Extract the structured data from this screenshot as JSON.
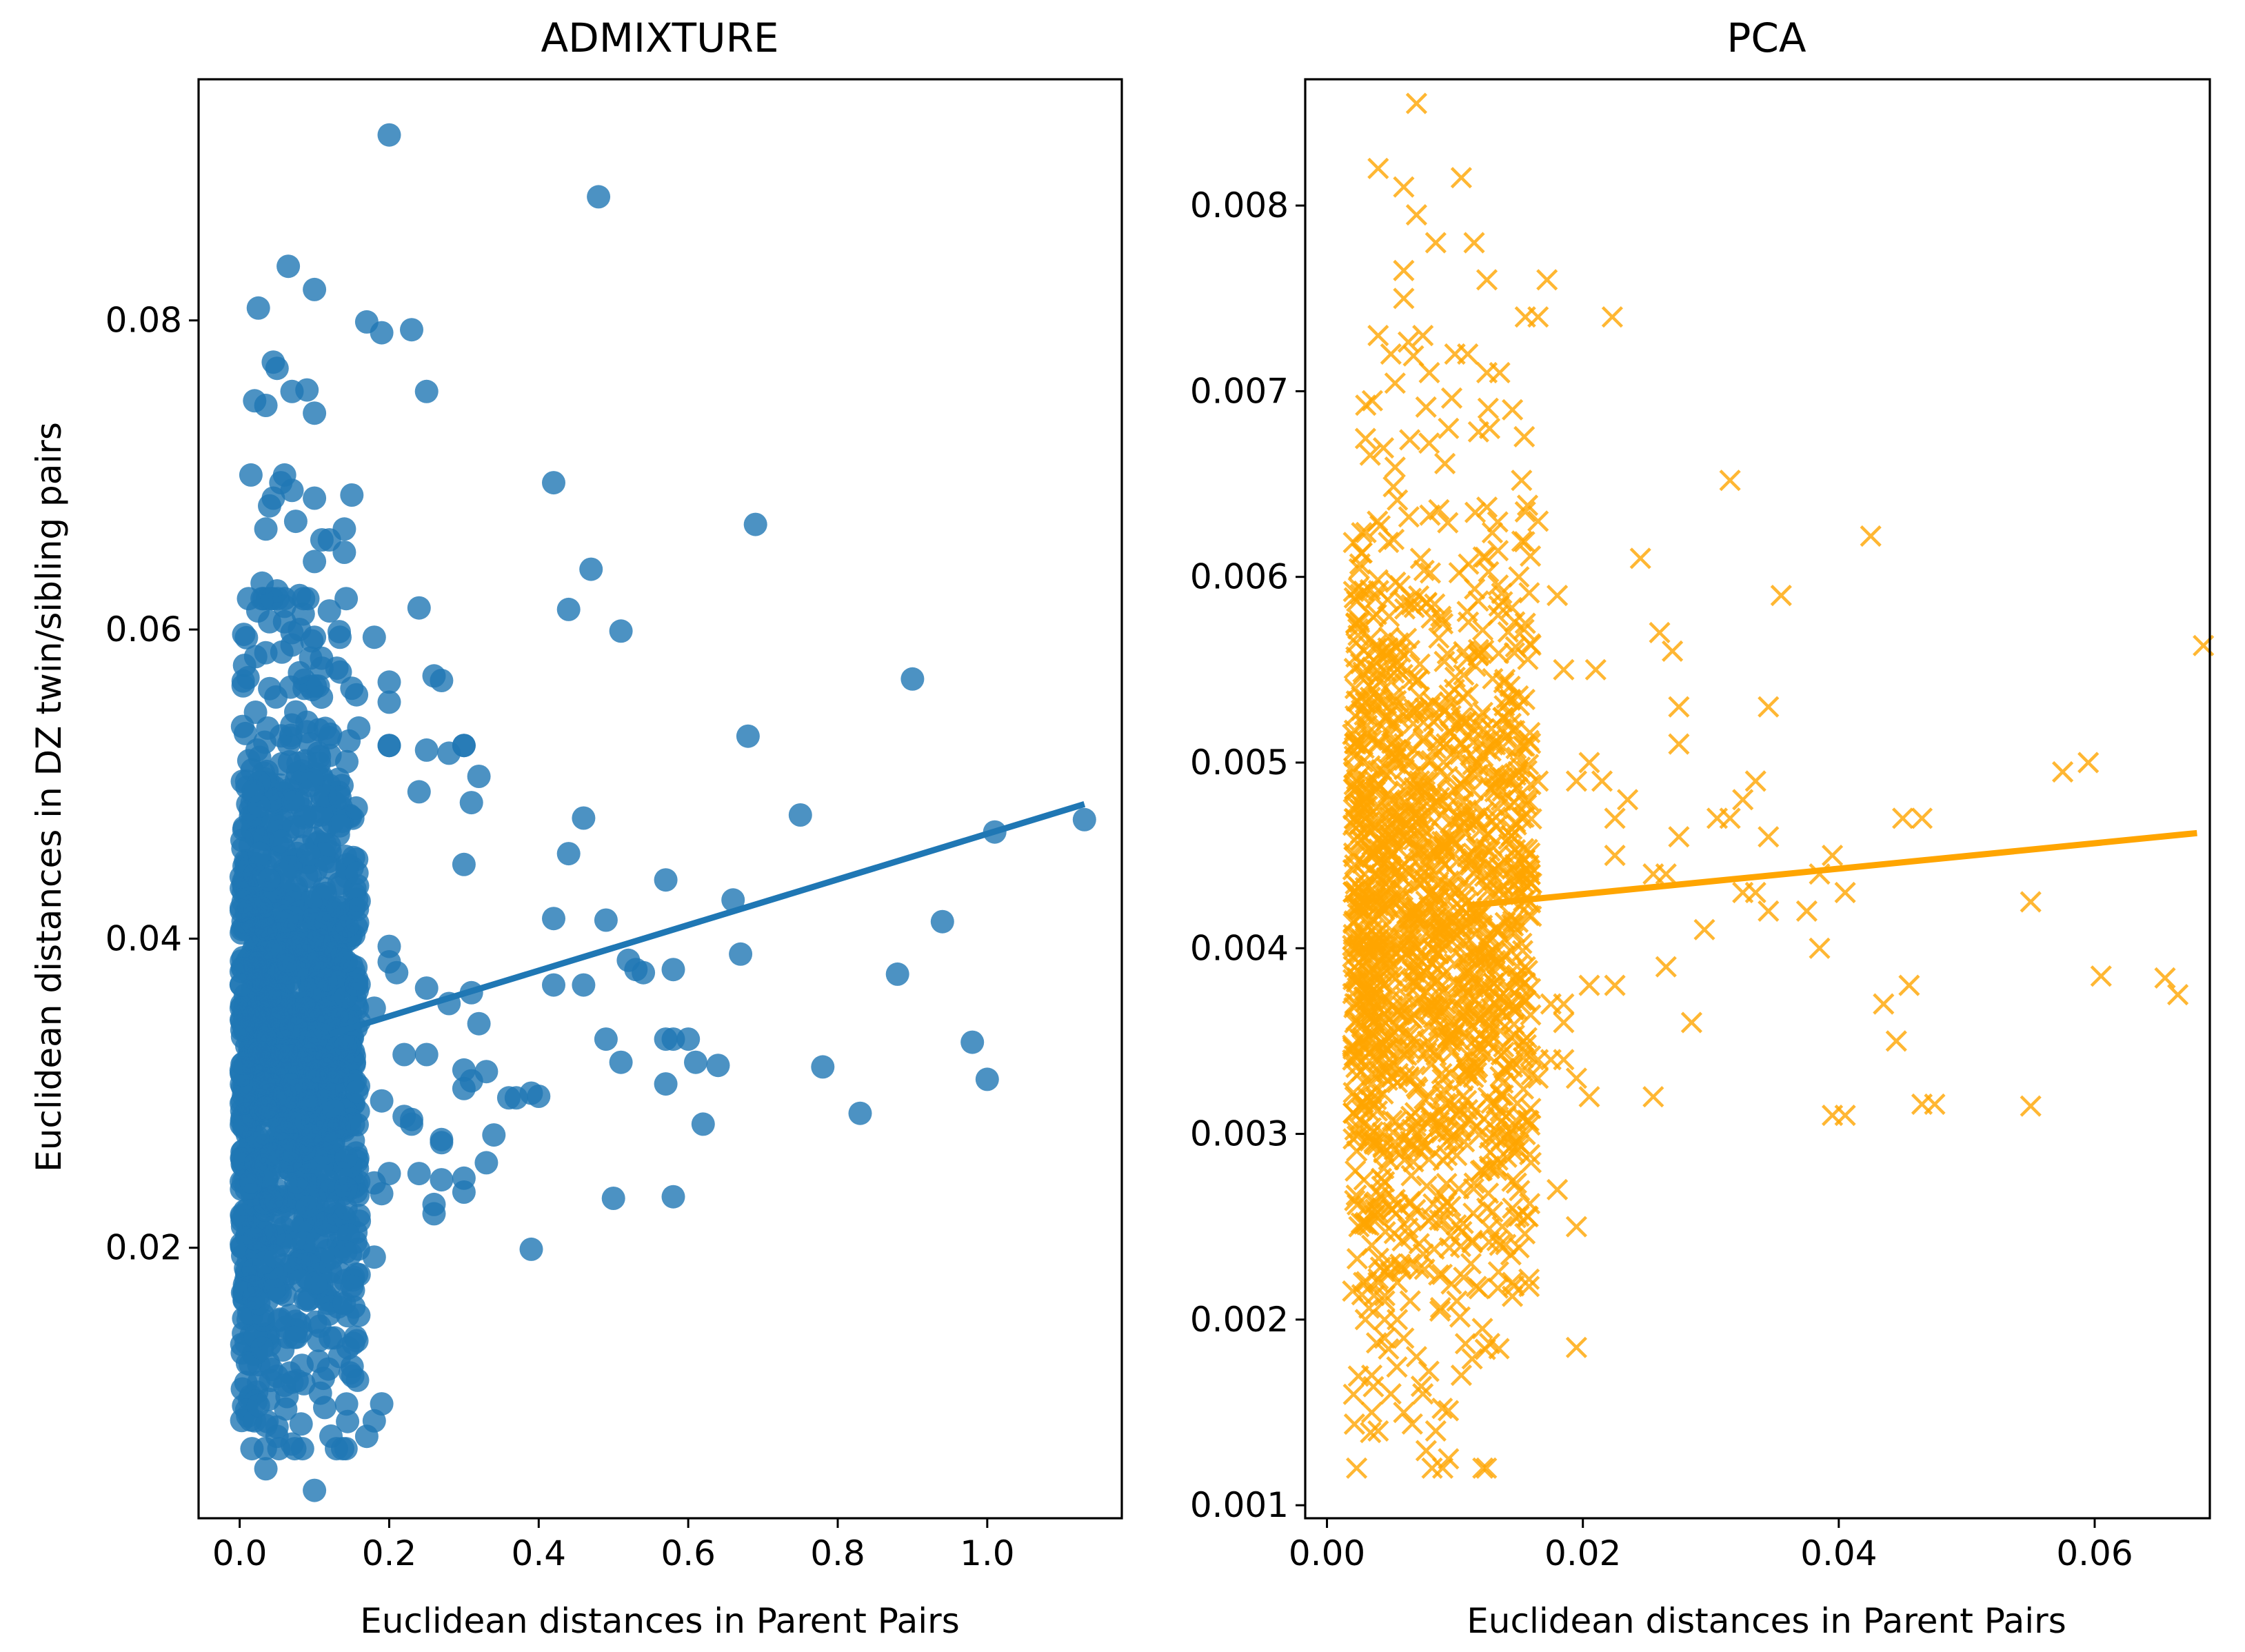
{
  "figure": {
    "ylabel": "Euclidean distances in DZ twin/sibling pairs"
  },
  "chart_data": [
    {
      "type": "scatter",
      "title": "ADMIXTURE",
      "xlabel": "Euclidean distances in Parent Pairs",
      "ylabel": "Euclidean distances in DZ twin/sibling pairs",
      "xlim": [
        -0.055,
        1.18
      ],
      "ylim": [
        0.0025,
        0.0956
      ],
      "xticks": [
        0.0,
        0.2,
        0.4,
        0.6,
        0.8,
        1.0
      ],
      "xtick_labels": [
        "0.0",
        "0.2",
        "0.4",
        "0.6",
        "0.8",
        "1.0"
      ],
      "yticks": [
        0.02,
        0.04,
        0.06,
        0.08
      ],
      "ytick_labels": [
        "0.02",
        "0.04",
        "0.06",
        "0.08"
      ],
      "marker": "circle",
      "color": "#1f77b4",
      "regression_line": {
        "x": [
          0.12,
          1.13
        ],
        "y": [
          0.0338,
          0.0487
        ]
      },
      "cluster": {
        "n": 1400,
        "x_min": 0.002,
        "x_max": 0.16,
        "y_mean": 0.033,
        "y_sd": 0.011,
        "y_min": 0.007,
        "y_max": 0.062
      },
      "series": [
        {
          "name": "ADMIXTURE",
          "x": [
            0.2,
            0.48,
            0.065,
            0.025,
            0.1,
            0.19,
            0.17,
            0.23,
            0.045,
            0.05,
            0.07,
            0.02,
            0.035,
            0.09,
            0.1,
            0.25,
            0.015,
            0.06,
            0.055,
            0.04,
            0.045,
            0.07,
            0.1,
            0.15,
            0.035,
            0.075,
            0.11,
            0.14,
            0.14,
            0.1,
            0.12,
            0.03,
            0.06,
            0.085,
            0.05,
            0.06,
            0.06,
            0.08,
            0.04,
            0.07,
            0.08,
            0.07,
            0.12,
            0.035,
            0.08,
            0.13,
            0.1,
            0.11,
            0.18,
            0.24,
            0.09,
            0.12,
            0.2,
            0.2,
            0.26,
            0.27,
            0.15,
            0.2,
            0.42,
            0.69,
            0.44,
            0.47,
            0.51,
            0.9,
            0.68,
            0.75,
            0.46,
            0.44,
            0.32,
            0.3,
            0.2,
            0.25,
            0.28,
            0.3,
            0.31,
            0.24,
            0.42,
            0.49,
            0.57,
            0.52,
            0.66,
            0.53,
            0.54,
            0.58,
            0.67,
            0.42,
            0.46,
            0.6,
            0.58,
            0.57,
            0.49,
            0.51,
            0.57,
            0.61,
            0.64,
            0.3,
            0.32,
            0.31,
            0.88,
            0.94,
            1.01,
            1.13,
            0.98,
            1.0,
            0.78,
            0.83,
            0.58,
            0.5,
            0.62,
            0.39,
            0.37,
            0.39,
            0.36,
            0.34,
            0.33,
            0.4,
            0.27,
            0.3,
            0.33,
            0.3,
            0.19,
            0.18,
            0.24,
            0.26,
            0.3,
            0.18,
            0.15,
            0.14,
            0.07,
            0.035,
            0.05,
            0.1,
            0.02,
            0.19,
            0.18,
            0.17,
            0.03,
            0.035,
            0.05,
            0.025,
            0.07,
            0.06,
            0.22,
            0.23,
            0.27,
            0.25,
            0.2,
            0.2,
            0.25,
            0.28,
            0.3,
            0.31,
            0.18,
            0.21,
            0.22,
            0.19,
            0.2,
            0.23,
            0.26,
            0.27
          ],
          "y": [
            0.092,
            0.088,
            0.0835,
            0.0808,
            0.082,
            0.0792,
            0.0799,
            0.0794,
            0.0773,
            0.0769,
            0.0754,
            0.0748,
            0.0745,
            0.0755,
            0.074,
            0.0754,
            0.07,
            0.07,
            0.0695,
            0.068,
            0.0685,
            0.069,
            0.0685,
            0.0687,
            0.0665,
            0.067,
            0.0658,
            0.0665,
            0.065,
            0.0644,
            0.0658,
            0.063,
            0.062,
            0.061,
            0.0625,
            0.0605,
            0.0615,
            0.0622,
            0.0605,
            0.0598,
            0.06,
            0.059,
            0.0612,
            0.0585,
            0.0572,
            0.0575,
            0.0595,
            0.0575,
            0.0595,
            0.0614,
            0.054,
            0.053,
            0.0566,
            0.0553,
            0.057,
            0.0567,
            0.0562,
            0.0525,
            0.0695,
            0.0668,
            0.0613,
            0.0639,
            0.0599,
            0.0568,
            0.0531,
            0.048,
            0.0478,
            0.0455,
            0.0505,
            0.0525,
            0.0525,
            0.0522,
            0.052,
            0.0525,
            0.0488,
            0.0495,
            0.0413,
            0.0412,
            0.0438,
            0.0386,
            0.0425,
            0.038,
            0.0378,
            0.038,
            0.039,
            0.037,
            0.037,
            0.0335,
            0.0335,
            0.0335,
            0.0335,
            0.032,
            0.0306,
            0.032,
            0.0318,
            0.0448,
            0.0345,
            0.0365,
            0.0377,
            0.0411,
            0.0469,
            0.0477,
            0.0333,
            0.0309,
            0.0317,
            0.0287,
            0.0233,
            0.0232,
            0.028,
            0.0199,
            0.0297,
            0.03,
            0.0297,
            0.0273,
            0.0255,
            0.0298,
            0.027,
            0.0303,
            0.0314,
            0.0245,
            0.0235,
            0.0242,
            0.0248,
            0.0222,
            0.0236,
            0.0194,
            0.0175,
            0.0164,
            0.0073,
            0.0057,
            0.0078,
            0.0043,
            0.0088,
            0.0099,
            0.0088,
            0.0078,
            0.0135,
            0.0085,
            0.0084,
            0.0098,
            0.0113,
            0.0111,
            0.0285,
            0.028,
            0.0268,
            0.0325,
            0.0395,
            0.0385,
            0.0368,
            0.0358,
            0.0315,
            0.0308,
            0.0355,
            0.0378,
            0.0325,
            0.0295,
            0.0248,
            0.0283,
            0.0228,
            0.0244
          ]
        }
      ]
    },
    {
      "type": "scatter",
      "title": "PCA",
      "xlabel": "Euclidean distances in Parent Pairs",
      "ylabel": "",
      "xlim": [
        -0.0017,
        0.069
      ],
      "ylim": [
        0.00093,
        0.00868
      ],
      "xticks": [
        0.0,
        0.02,
        0.04,
        0.06
      ],
      "xtick_labels": [
        "0.00",
        "0.02",
        "0.04",
        "0.06"
      ],
      "yticks": [
        0.001,
        0.002,
        0.003,
        0.004,
        0.005,
        0.006,
        0.007,
        0.008
      ],
      "ytick_labels": [
        "0.001",
        "0.002",
        "0.003",
        "0.004",
        "0.005",
        "0.006",
        "0.007",
        "0.008"
      ],
      "marker": "x",
      "color": "#ffa500",
      "regression_line": {
        "x": [
          0.011,
          0.068
        ],
        "y": [
          0.00423,
          0.00462
        ]
      },
      "cluster": {
        "n": 1400,
        "x_min": 0.002,
        "x_max": 0.016,
        "y_mean": 0.0042,
        "y_sd": 0.00105,
        "y_min": 0.0012,
        "y_max": 0.0086
      },
      "series": [
        {
          "name": "PCA",
          "x": [
            0.007,
            0.004,
            0.0105,
            0.006,
            0.007,
            0.006,
            0.0085,
            0.0115,
            0.0125,
            0.0172,
            0.0155,
            0.0165,
            0.0223,
            0.006,
            0.0075,
            0.01,
            0.011,
            0.0125,
            0.0135,
            0.0145,
            0.004,
            0.005,
            0.008,
            0.0095,
            0.0315,
            0.0425,
            0.0155,
            0.0165,
            0.015,
            0.018,
            0.0155,
            0.0185,
            0.0245,
            0.021,
            0.026,
            0.0355,
            0.027,
            0.0275,
            0.0345,
            0.0275,
            0.0685,
            0.0575,
            0.0595,
            0.055,
            0.0465,
            0.045,
            0.0165,
            0.0195,
            0.0235,
            0.0225,
            0.0205,
            0.0215,
            0.0275,
            0.0255,
            0.0225,
            0.0265,
            0.0315,
            0.0325,
            0.0345,
            0.0335,
            0.0385,
            0.0395,
            0.0375,
            0.0405,
            0.0345,
            0.0325,
            0.0305,
            0.0295,
            0.0335,
            0.0265,
            0.0225,
            0.0205,
            0.0185,
            0.0155,
            0.0175,
            0.0185,
            0.0165,
            0.0445,
            0.0435,
            0.0455,
            0.0385,
            0.0395,
            0.0405,
            0.0465,
            0.0475,
            0.055,
            0.0655,
            0.0665,
            0.0605,
            0.0255,
            0.0285,
            0.0205,
            0.0185,
            0.0195,
            0.0175,
            0.0165,
            0.0145,
            0.0195,
            0.0105,
            0.0085,
            0.0095,
            0.0075,
            0.007,
            0.006,
            0.004,
            0.0035,
            0.005,
            0.0045,
            0.0065,
            0.0035,
            0.003,
            0.0045,
            0.0055,
            0.0065,
            0.0025,
            0.003,
            0.0035,
            0.004,
            0.0045,
            0.005,
            0.0055,
            0.006,
            0.012,
            0.0125,
            0.0135,
            0.0145,
            0.018,
            0.0195
          ],
          "y": [
            0.00855,
            0.0082,
            0.00815,
            0.0081,
            0.00795,
            0.00765,
            0.0078,
            0.0078,
            0.0076,
            0.0076,
            0.0074,
            0.0074,
            0.0074,
            0.0075,
            0.0073,
            0.0072,
            0.0072,
            0.0071,
            0.0071,
            0.0069,
            0.0073,
            0.0072,
            0.0071,
            0.0068,
            0.00652,
            0.00622,
            0.00635,
            0.0063,
            0.006,
            0.0059,
            0.00575,
            0.0055,
            0.0061,
            0.0055,
            0.0057,
            0.0059,
            0.0056,
            0.0053,
            0.0053,
            0.0051,
            0.00563,
            0.00495,
            0.005,
            0.00425,
            0.0047,
            0.0047,
            0.0049,
            0.0049,
            0.0048,
            0.0047,
            0.005,
            0.0049,
            0.0046,
            0.0044,
            0.0045,
            0.0044,
            0.0047,
            0.0048,
            0.0046,
            0.0043,
            0.0044,
            0.0045,
            0.0042,
            0.0043,
            0.0042,
            0.0043,
            0.0047,
            0.0041,
            0.0049,
            0.0039,
            0.0038,
            0.0038,
            0.0037,
            0.0039,
            0.0037,
            0.0036,
            0.0034,
            0.0035,
            0.0037,
            0.0038,
            0.004,
            0.0031,
            0.0031,
            0.00316,
            0.00316,
            0.00315,
            0.00384,
            0.00375,
            0.00385,
            0.0032,
            0.0036,
            0.0032,
            0.0034,
            0.0033,
            0.0034,
            0.0033,
            0.0026,
            0.0025,
            0.0017,
            0.0014,
            0.00125,
            0.0016,
            0.0018,
            0.0015,
            0.0014,
            0.0015,
            0.0016,
            0.002,
            0.0021,
            0.0017,
            0.002,
            0.0019,
            0.0022,
            0.0023,
            0.0025,
            0.0026,
            0.0024,
            0.0022,
            0.0021,
            0.0023,
            0.002,
            0.0019,
            0.0028,
            0.0026,
            0.0024,
            0.0022,
            0.0027,
            0.00185
          ]
        }
      ]
    }
  ]
}
